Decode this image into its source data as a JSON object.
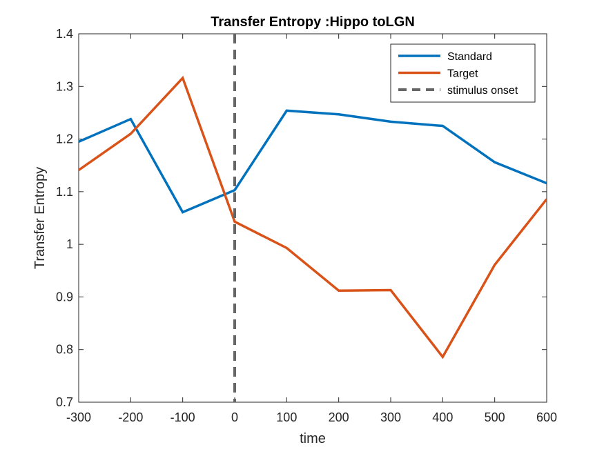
{
  "chart_data": {
    "type": "line",
    "title": "Transfer Entropy :Hippo toLGN",
    "xlabel": "time",
    "ylabel": "Transfer Entropy",
    "xlim": [
      -300,
      600
    ],
    "ylim": [
      0.7,
      1.4
    ],
    "xticks": [
      -300,
      -200,
      -100,
      0,
      100,
      200,
      300,
      400,
      500,
      600
    ],
    "yticks": [
      0.7,
      0.8,
      0.9,
      1.0,
      1.1,
      1.2,
      1.3,
      1.4
    ],
    "ytick_labels": [
      "0.7",
      "0.8",
      "0.9",
      "1",
      "1.1",
      "1.2",
      "1.3",
      "1.4"
    ],
    "grid": false,
    "legend_position": "top-right",
    "x": [
      -300,
      -200,
      -100,
      0,
      100,
      200,
      300,
      400,
      500,
      600
    ],
    "series": [
      {
        "name": "Standard",
        "color": "#0072BD",
        "values": [
          1.195,
          1.238,
          1.061,
          1.103,
          1.254,
          1.247,
          1.233,
          1.225,
          1.156,
          1.116
        ]
      },
      {
        "name": "Target",
        "color": "#D95319",
        "values": [
          1.141,
          1.21,
          1.316,
          1.043,
          0.993,
          0.912,
          0.913,
          0.786,
          0.961,
          1.086
        ]
      }
    ],
    "reference_line": {
      "name": "stimulus onset",
      "x": 0,
      "color": "#666666",
      "style": "dashed"
    }
  }
}
